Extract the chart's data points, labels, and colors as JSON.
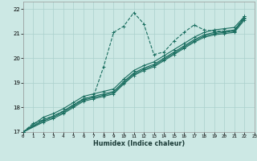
{
  "xlabel": "Humidex (Indice chaleur)",
  "bg_color": "#cce8e4",
  "grid_color": "#aad0cc",
  "line_color": "#1a6e60",
  "xlim": [
    0,
    23
  ],
  "ylim": [
    17.0,
    22.3
  ],
  "xtick_vals": [
    0,
    1,
    2,
    3,
    4,
    5,
    6,
    7,
    8,
    9,
    10,
    11,
    12,
    13,
    14,
    15,
    16,
    17,
    18,
    19,
    20,
    21,
    22,
    23
  ],
  "ytick_vals": [
    17,
    18,
    19,
    20,
    21,
    22
  ],
  "series": [
    {
      "x": [
        0,
        1,
        2,
        3,
        4,
        5,
        6,
        7,
        8,
        9,
        10,
        11,
        12,
        13,
        14,
        15,
        16,
        17,
        18,
        19,
        20,
        21,
        22
      ],
      "y": [
        17.0,
        17.35,
        17.5,
        17.65,
        17.85,
        18.1,
        18.35,
        18.45,
        19.65,
        21.05,
        21.3,
        21.85,
        21.4,
        20.15,
        20.25,
        20.7,
        21.05,
        21.35,
        21.15,
        21.1,
        21.1,
        21.1,
        21.7
      ],
      "dashed": true,
      "lw": 0.8
    },
    {
      "x": [
        0,
        2,
        3,
        4,
        5,
        6,
        7,
        8,
        9,
        10,
        11,
        12,
        13,
        14,
        15,
        16,
        17,
        18,
        19,
        20,
        21,
        22
      ],
      "y": [
        17.0,
        17.6,
        17.75,
        17.95,
        18.2,
        18.45,
        18.55,
        18.65,
        18.75,
        19.15,
        19.5,
        19.7,
        19.85,
        20.1,
        20.35,
        20.6,
        20.85,
        21.05,
        21.15,
        21.2,
        21.25,
        21.7
      ],
      "dashed": false,
      "lw": 0.8
    },
    {
      "x": [
        0,
        2,
        3,
        4,
        5,
        6,
        7,
        8,
        9,
        10,
        11,
        12,
        13,
        14,
        15,
        16,
        17,
        18,
        19,
        20,
        21,
        22
      ],
      "y": [
        17.0,
        17.5,
        17.65,
        17.85,
        18.1,
        18.35,
        18.45,
        18.55,
        18.65,
        19.05,
        19.4,
        19.6,
        19.75,
        20.0,
        20.25,
        20.5,
        20.75,
        20.95,
        21.05,
        21.1,
        21.15,
        21.65
      ],
      "dashed": false,
      "lw": 0.8
    },
    {
      "x": [
        0,
        2,
        3,
        4,
        5,
        6,
        7,
        8,
        9,
        10,
        11,
        12,
        13,
        14,
        15,
        16,
        17,
        18,
        19,
        20,
        21,
        22
      ],
      "y": [
        17.0,
        17.45,
        17.6,
        17.8,
        18.05,
        18.3,
        18.4,
        18.5,
        18.6,
        19.0,
        19.35,
        19.55,
        19.7,
        19.95,
        20.2,
        20.45,
        20.7,
        20.9,
        21.0,
        21.05,
        21.1,
        21.6
      ],
      "dashed": false,
      "lw": 0.8
    },
    {
      "x": [
        0,
        2,
        3,
        4,
        5,
        6,
        7,
        8,
        9,
        10,
        11,
        12,
        13,
        14,
        15,
        16,
        17,
        18,
        19,
        20,
        21,
        22
      ],
      "y": [
        17.0,
        17.4,
        17.55,
        17.75,
        18.0,
        18.25,
        18.35,
        18.45,
        18.55,
        18.95,
        19.3,
        19.5,
        19.65,
        19.9,
        20.15,
        20.4,
        20.65,
        20.85,
        20.95,
        21.0,
        21.05,
        21.55
      ],
      "dashed": false,
      "lw": 0.8
    }
  ]
}
